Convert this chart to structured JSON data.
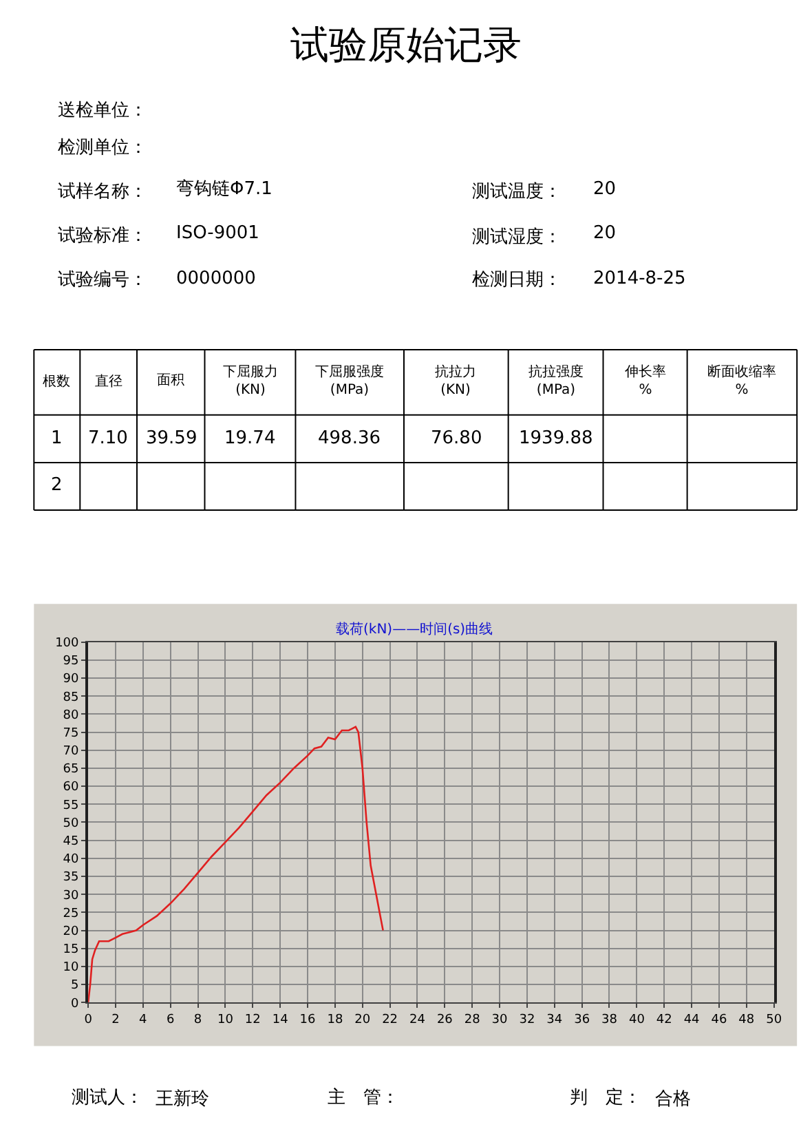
{
  "chart_data": {
    "type": "line",
    "title": "试验原始记录",
    "subtitle": "载荷(kN)——时间(s)曲线",
    "annotations": [
      "送检单位：",
      "检测单位：",
      "试样名称：",
      "弯钩链Φ7.1",
      "测试温度：",
      "20",
      "试验标准：",
      "ISO-9001",
      "测试湿度：",
      "20",
      "试验编号：",
      "0000000",
      "检测日期：",
      "2014-8-25",
      "根数",
      "直径",
      "面积",
      "下屈服力\n(KN)",
      "下屈服强度\n(MPa)",
      "抗拉力\n(KN)",
      "抗拉强度\n(MPa)",
      "伸长率\n%",
      "断面收缩率\n%",
      "1",
      "7.10",
      "39.59",
      "19.74",
      "498.36",
      "76.80",
      "1939.88",
      "2",
      "测试人：",
      "王新玲",
      "主　管：",
      "判　定：",
      "合格"
    ],
    "x": [
      0,
      0.15,
      0.3,
      0.5,
      0.8,
      1.0,
      1.5,
      2,
      2.5,
      3,
      3.5,
      4,
      5,
      6,
      7,
      8,
      9,
      10,
      11,
      12,
      13,
      14,
      15,
      16,
      16.5,
      17,
      17.5,
      18,
      18.5,
      19,
      19.5,
      19.7,
      20,
      20.3,
      20.6,
      21,
      21.3,
      21.5
    ],
    "series": [
      {
        "color": "#e02020",
        "values": [
          0,
          5,
          12,
          14.5,
          17,
          17,
          17,
          18,
          19,
          19.5,
          20,
          21.5,
          24,
          27.5,
          31.5,
          36,
          40.5,
          44.5,
          48.5,
          53,
          57.5,
          61,
          65,
          68.5,
          70.5,
          71,
          73.5,
          73,
          75.5,
          75.5,
          76.5,
          75,
          65,
          50,
          38,
          30,
          24,
          20
        ]
      }
    ],
    "xlim": [
      0,
      50
    ],
    "xticks": [
      0,
      2,
      4,
      6,
      8,
      10,
      12,
      14,
      16,
      18,
      20,
      22,
      24,
      26,
      28,
      30,
      32,
      34,
      36,
      38,
      40,
      42,
      44,
      46,
      48,
      50
    ],
    "ylim": [
      0,
      100
    ],
    "yticks": [
      0,
      5,
      10,
      15,
      20,
      25,
      30,
      35,
      40,
      45,
      50,
      55,
      60,
      65,
      70,
      75,
      80,
      85,
      90,
      95,
      100
    ],
    "grid": true,
    "marker": "none",
    "line_style": "solid"
  }
}
